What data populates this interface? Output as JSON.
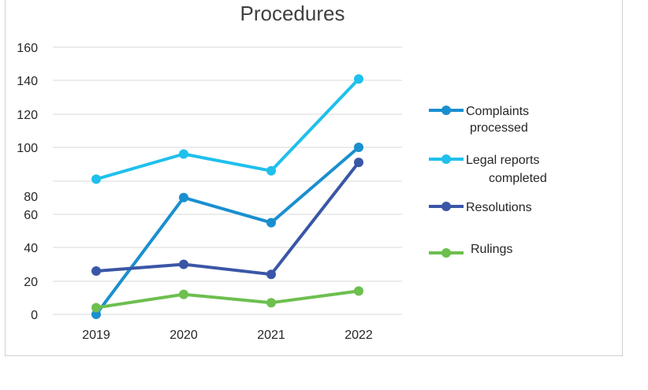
{
  "chart_data": {
    "type": "line",
    "title": "Procedures",
    "xlabel": "",
    "ylabel": "",
    "categories": [
      "2019",
      "2020",
      "2021",
      "2022"
    ],
    "y_tick_labels": [
      "0",
      "20",
      "40",
      "60",
      "80",
      "100",
      "120",
      "140",
      "160"
    ],
    "grid": true,
    "legend_position": "right",
    "series": [
      {
        "name": "Complaints processed",
        "values": [
          0,
          70,
          55,
          100
        ],
        "color": "#1a8fcf"
      },
      {
        "name": "Legal reports completed",
        "values": [
          81,
          96,
          86,
          141
        ],
        "color": "#1fc0ec"
      },
      {
        "name": "Resolutions",
        "values": [
          26,
          30,
          24,
          91
        ],
        "color": "#3a56a6"
      },
      {
        "name": "Rulings",
        "values": [
          4,
          12,
          7,
          14
        ],
        "color": "#6dbf4e"
      }
    ]
  }
}
